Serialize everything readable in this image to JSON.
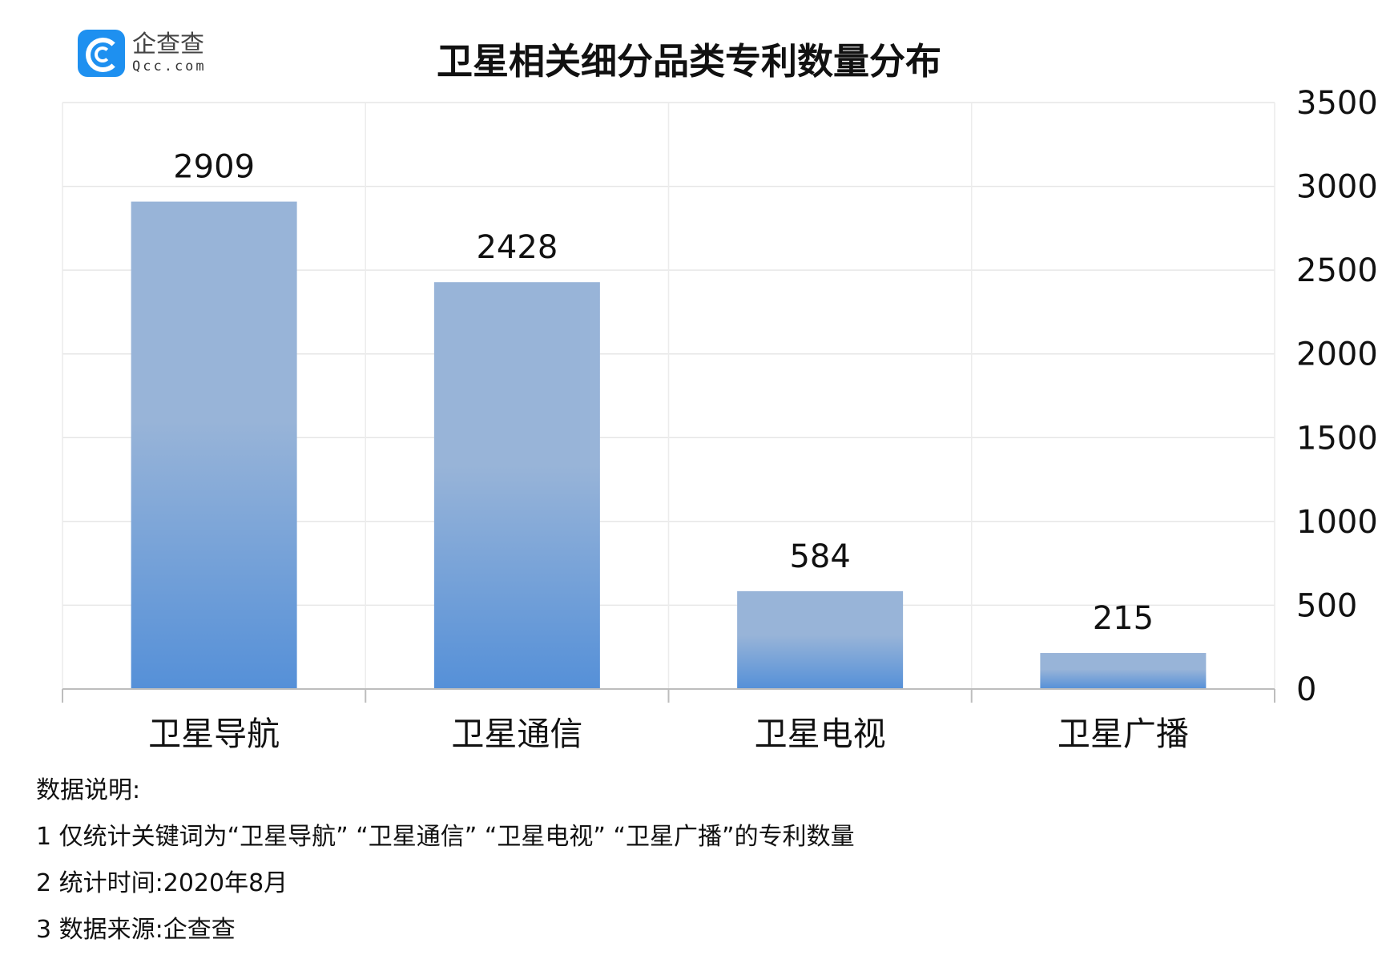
{
  "logo": {
    "cn": "企查查",
    "en": "Qcc.com"
  },
  "chart_data": {
    "type": "bar",
    "title": "卫星相关细分品类专利数量分布",
    "categories": [
      "卫星导航",
      "卫星通信",
      "卫星电视",
      "卫星广播"
    ],
    "values": [
      2909,
      2428,
      584,
      215
    ],
    "ylim": [
      0,
      3500
    ],
    "yticks": [
      0,
      500,
      1000,
      1500,
      2000,
      2500,
      3000,
      3500
    ],
    "yaxis_position": "right",
    "grid": true,
    "legend": "none",
    "bar_color_top": "#98b4d8",
    "bar_color_bottom": "#5590d8"
  },
  "notes": {
    "heading": "数据说明:",
    "lines": [
      "1 仅统计关键词为“卫星导航” “卫星通信” “卫星电视” “卫星广播”的专利数量",
      "2 统计时间:2020年8月",
      "3 数据来源:企查查"
    ]
  }
}
